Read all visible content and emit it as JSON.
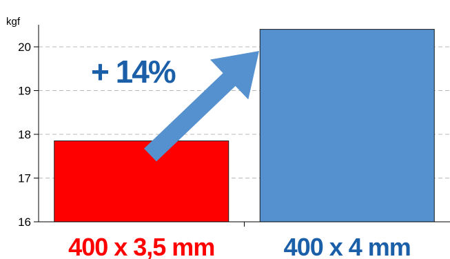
{
  "chart_data": {
    "type": "bar",
    "ylabel": "kgf",
    "ylim": [
      16,
      20.5
    ],
    "yticks": [
      16,
      17,
      18,
      19,
      20
    ],
    "grid": true,
    "categories": [
      "400 x 3,5 mm",
      "400 x 4 mm"
    ],
    "values": [
      17.85,
      20.4
    ],
    "bar_colors": [
      "#ff0000",
      "#5590cf"
    ],
    "label_colors": [
      "#ff0000",
      "#1a5fa8"
    ],
    "annotation": "+ 14%",
    "annotation_color": "#1a5fa8",
    "arrow_color": "#5590cf"
  }
}
